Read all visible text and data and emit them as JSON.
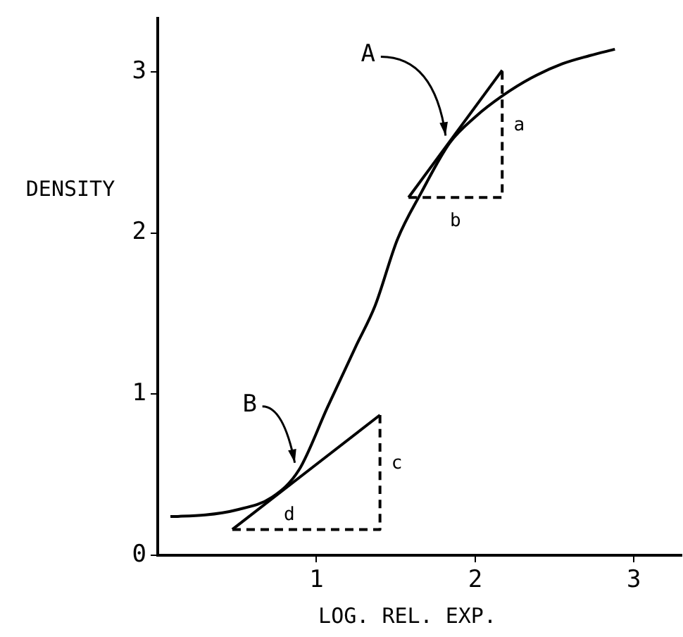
{
  "chart_data": {
    "type": "line",
    "xlabel": "LOG. REL. EXP.",
    "ylabel": "DENSITY",
    "xlim": [
      0,
      3.3
    ],
    "ylim": [
      0,
      3.33
    ],
    "xticks": [
      1,
      2,
      3
    ],
    "yticks": [
      0,
      1,
      2,
      3
    ],
    "grid": false,
    "legend": false,
    "marker": "none",
    "series": [
      {
        "color": "#000000",
        "x": [
          0.08,
          0.3,
          0.49,
          0.72,
          0.89,
          1.07,
          1.25,
          1.37,
          1.51,
          1.66,
          1.84,
          2.0,
          2.17,
          2.35,
          2.55,
          2.72,
          2.88
        ],
        "values": [
          0.24,
          0.25,
          0.28,
          0.36,
          0.53,
          0.92,
          1.3,
          1.55,
          1.96,
          2.25,
          2.56,
          2.72,
          2.85,
          2.96,
          3.05,
          3.1,
          3.14
        ]
      },
      {
        "color": "#000000",
        "x": [
          1.58,
          2.17
        ],
        "values": [
          2.22,
          3.01
        ]
      },
      {
        "color": "#000000",
        "x": [
          0.47,
          1.4
        ],
        "values": [
          0.16,
          0.87
        ]
      },
      {
        "color": "#000000",
        "line_style": "dashed",
        "x": [
          1.58,
          2.17,
          2.17
        ],
        "values": [
          2.22,
          2.22,
          3.01
        ]
      },
      {
        "color": "#000000",
        "line_style": "dashed",
        "x": [
          0.47,
          1.4,
          1.4
        ],
        "values": [
          0.16,
          0.16,
          0.87
        ]
      }
    ],
    "annotations": [
      {
        "text": "A",
        "x": 1.84,
        "y": 2.56
      },
      {
        "text": "B",
        "x": 0.89,
        "y": 0.53
      },
      "a",
      "b",
      "c",
      "d"
    ]
  }
}
